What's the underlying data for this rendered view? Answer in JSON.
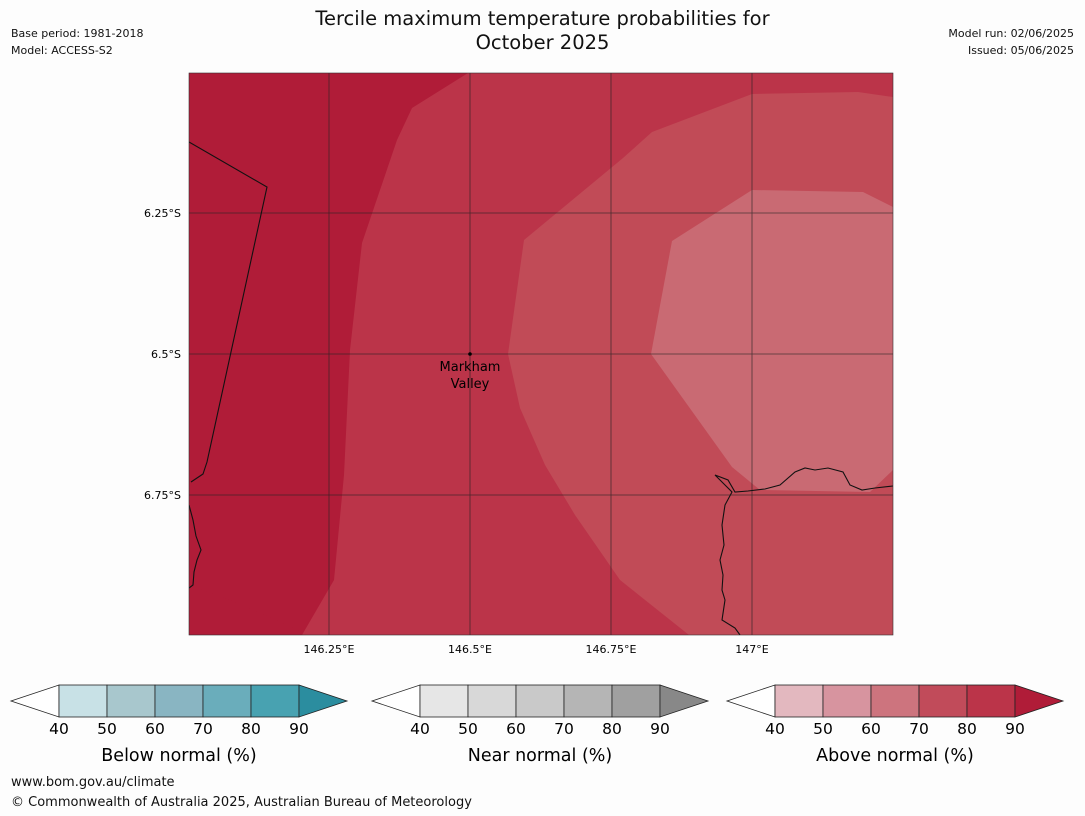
{
  "title": {
    "line1": "Tercile maximum temperature probabilities for",
    "line2": "October 2025"
  },
  "meta": {
    "base_period": "Base period: 1981-2018",
    "model": "Model: ACCESS-S2",
    "model_run": "Model run: 02/06/2025",
    "issued": "Issued: 05/06/2025"
  },
  "map": {
    "place_label_line1": "Markham",
    "place_label_line2": "Valley",
    "lat_ticks": [
      "6.25°S",
      "6.5°S",
      "6.75°S"
    ],
    "lon_ticks": [
      "146.25°E",
      "146.5°E",
      "146.75°E",
      "147°E"
    ],
    "fill_colors": {
      "dark": "#b01c38",
      "mid": "#bb3449",
      "light": "#c14b57",
      "lightest": "#c96a73"
    }
  },
  "colorbars": [
    {
      "label": "Below normal (%)",
      "ticks": [
        "40",
        "50",
        "60",
        "70",
        "80",
        "90"
      ],
      "colors": [
        "#c8e1e6",
        "#a8c7cd",
        "#89b5c2",
        "#6aadbb",
        "#48a2b1",
        "#2b8d9f"
      ]
    },
    {
      "label": "Near normal (%)",
      "ticks": [
        "40",
        "50",
        "60",
        "70",
        "80",
        "90"
      ],
      "colors": [
        "#e6e6e6",
        "#d8d8d8",
        "#c9c9c9",
        "#b5b5b5",
        "#a0a0a0",
        "#888888"
      ]
    },
    {
      "label": "Above normal (%)",
      "ticks": [
        "40",
        "50",
        "60",
        "70",
        "80",
        "90"
      ],
      "colors": [
        "#e3b8bf",
        "#d7949f",
        "#cd747e",
        "#c14b5a",
        "#bb3449",
        "#b01c38"
      ]
    }
  ],
  "footer": {
    "website": "www.bom.gov.au/climate",
    "copyright": "© Commonwealth of Australia 2025, Australian Bureau of Meteorology"
  }
}
